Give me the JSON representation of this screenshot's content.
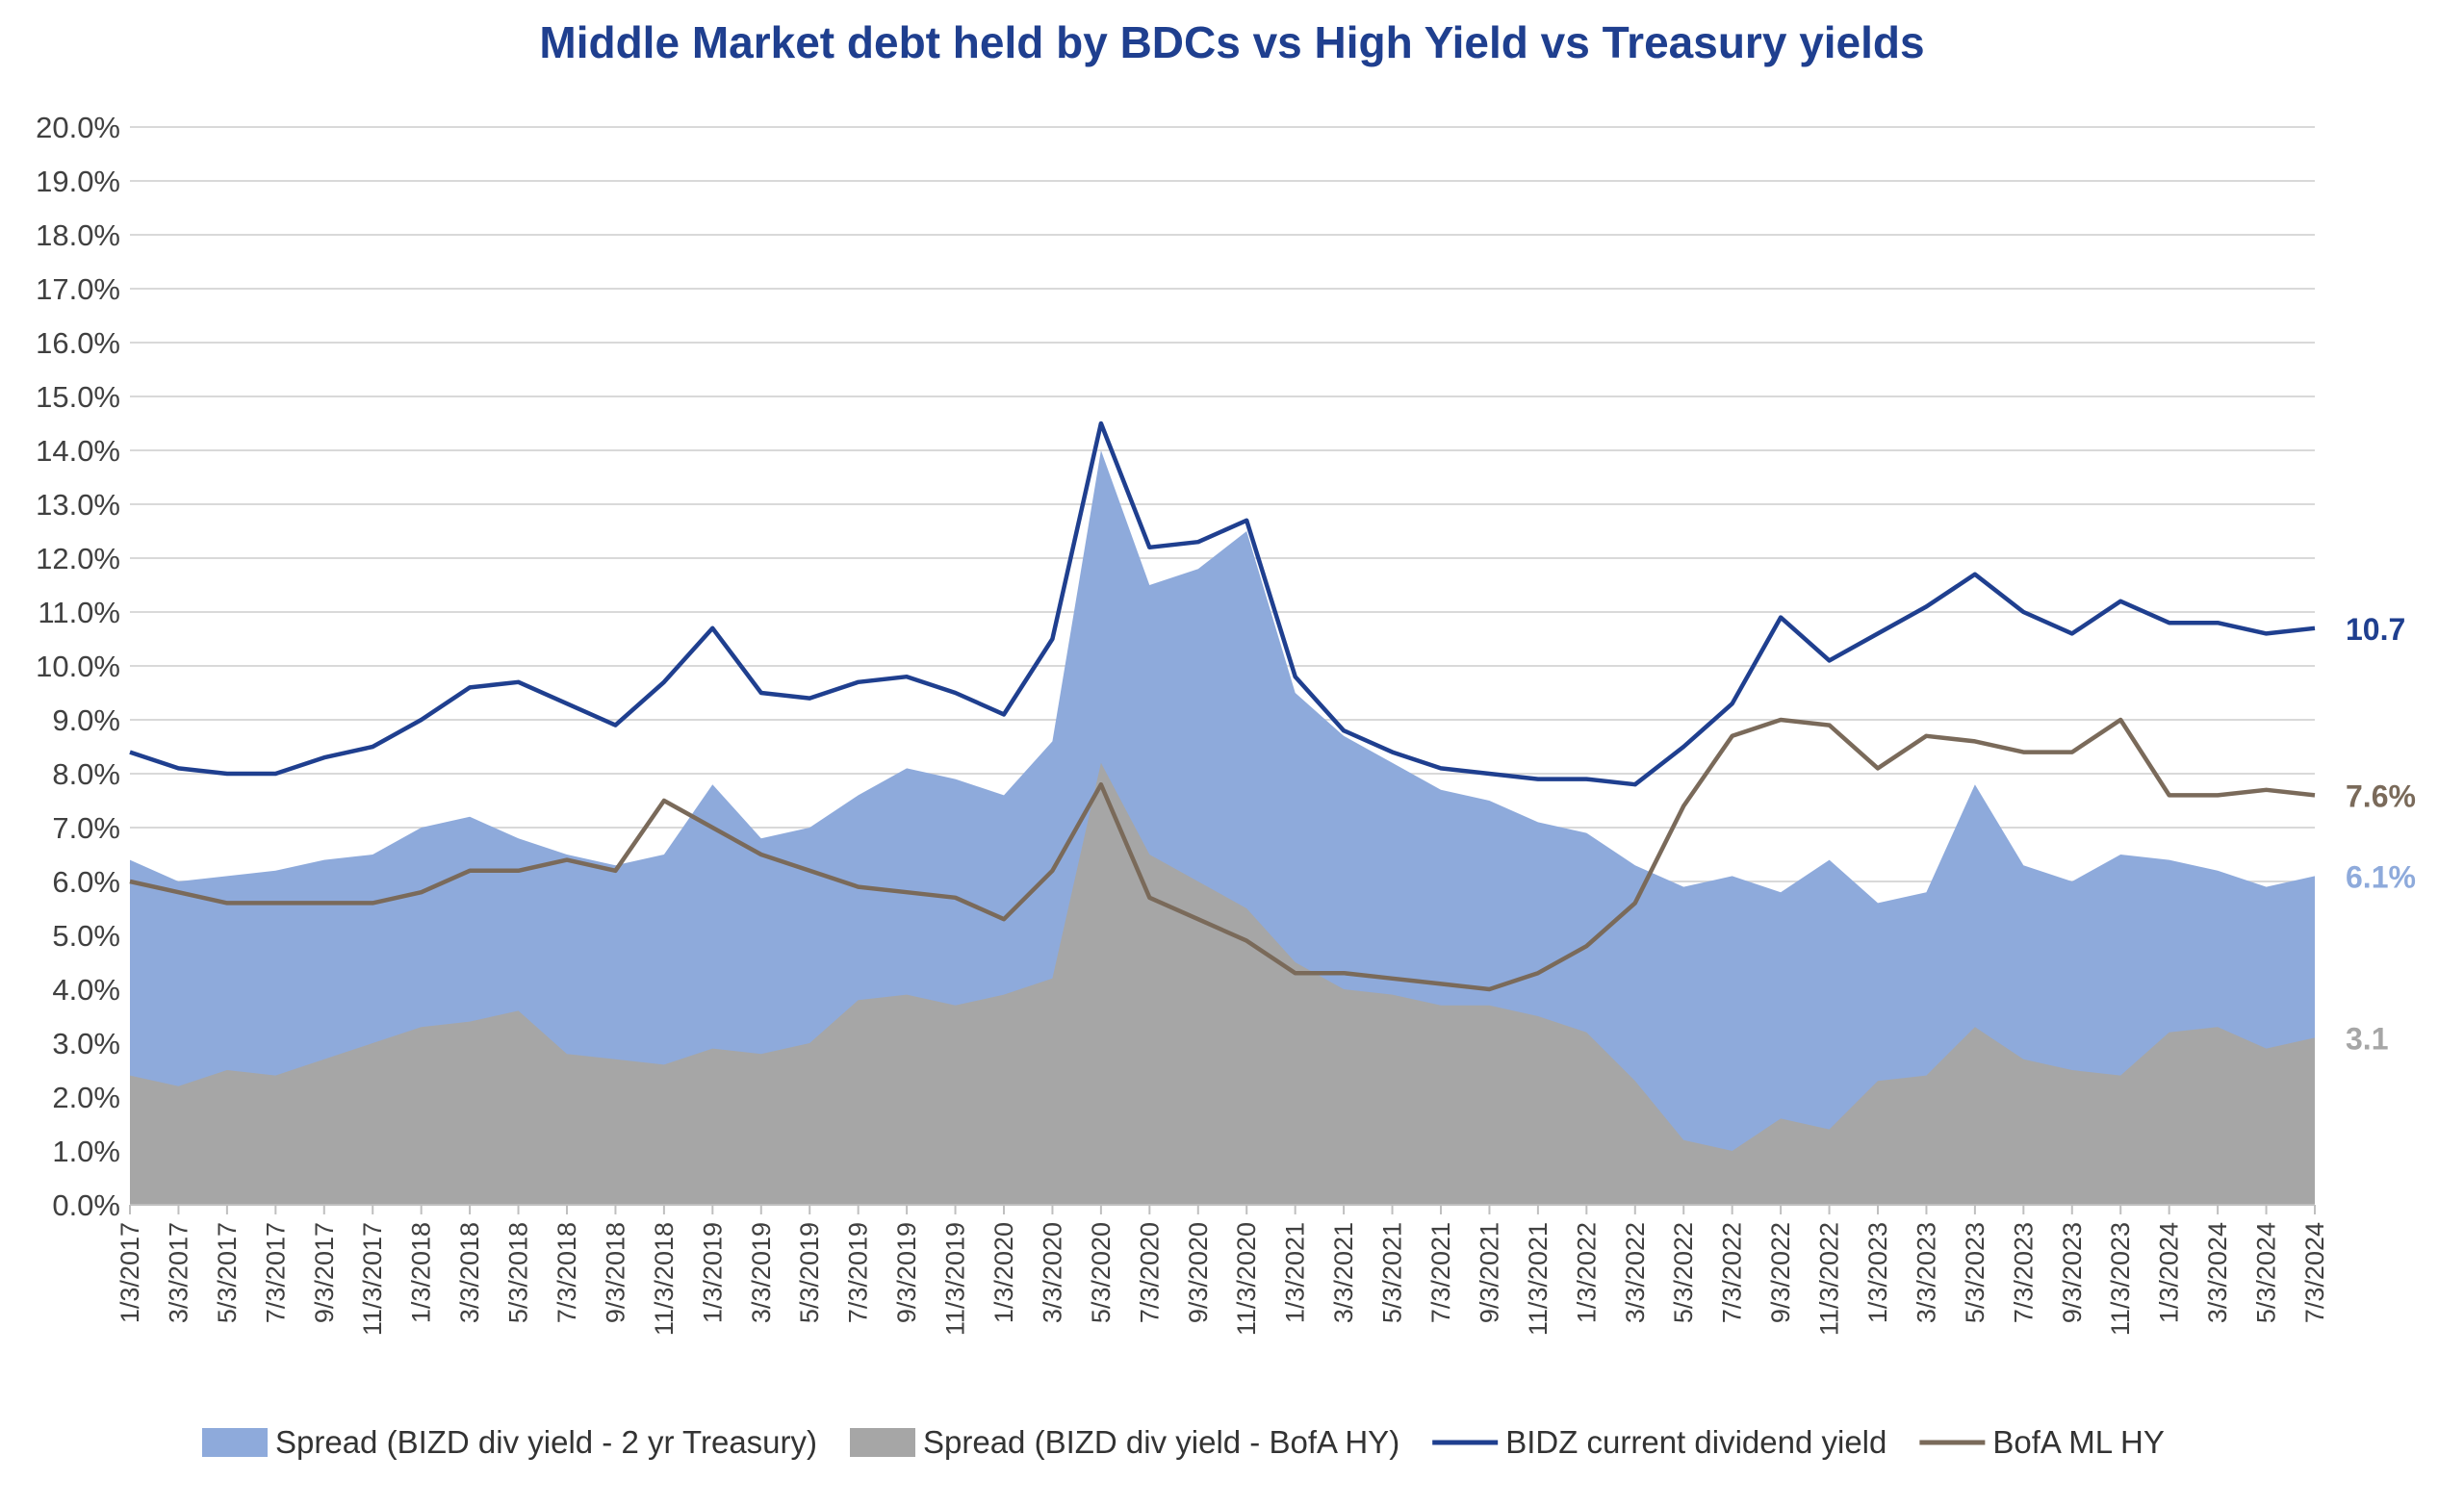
{
  "chart_data": {
    "type": "area",
    "title": "Middle Market debt held by BDCs vs High Yield vs Treasury yields",
    "xlabel": "",
    "ylabel": "",
    "ylim": [
      0,
      20
    ],
    "y_ticks": [
      "0.0%",
      "1.0%",
      "2.0%",
      "3.0%",
      "4.0%",
      "5.0%",
      "6.0%",
      "7.0%",
      "8.0%",
      "9.0%",
      "10.0%",
      "11.0%",
      "12.0%",
      "13.0%",
      "14.0%",
      "15.0%",
      "16.0%",
      "17.0%",
      "18.0%",
      "19.0%",
      "20.0%"
    ],
    "x_ticks": [
      "1/3/2017",
      "3/3/2017",
      "5/3/2017",
      "7/3/2017",
      "9/3/2017",
      "11/3/2017",
      "1/3/2018",
      "3/3/2018",
      "5/3/2018",
      "7/3/2018",
      "9/3/2018",
      "11/3/2018",
      "1/3/2019",
      "3/3/2019",
      "5/3/2019",
      "7/3/2019",
      "9/3/2019",
      "11/3/2019",
      "1/3/2020",
      "3/3/2020",
      "5/3/2020",
      "7/3/2020",
      "9/3/2020",
      "11/3/2020",
      "1/3/2021",
      "3/3/2021",
      "5/3/2021",
      "7/3/2021",
      "9/3/2021",
      "11/3/2021",
      "1/3/2022",
      "3/3/2022",
      "5/3/2022",
      "7/3/2022",
      "9/3/2022",
      "11/3/2022",
      "1/3/2023",
      "3/3/2023",
      "5/3/2023",
      "7/3/2023",
      "9/3/2023",
      "11/3/2023",
      "1/3/2024",
      "3/3/2024",
      "5/3/2024",
      "7/3/2024"
    ],
    "x": [
      "1/3/2017",
      "3/3/2017",
      "5/3/2017",
      "7/3/2017",
      "9/3/2017",
      "11/3/2017",
      "1/3/2018",
      "3/3/2018",
      "5/3/2018",
      "7/3/2018",
      "9/3/2018",
      "11/3/2018",
      "1/3/2019",
      "3/3/2019",
      "5/3/2019",
      "7/3/2019",
      "9/3/2019",
      "11/3/2019",
      "1/3/2020",
      "3/3/2020",
      "5/3/2020",
      "7/3/2020",
      "9/3/2020",
      "11/3/2020",
      "1/3/2021",
      "3/3/2021",
      "5/3/2021",
      "7/3/2021",
      "9/3/2021",
      "11/3/2021",
      "1/3/2022",
      "3/3/2022",
      "5/3/2022",
      "7/3/2022",
      "9/3/2022",
      "11/3/2022",
      "1/3/2023",
      "3/3/2023",
      "5/3/2023",
      "7/3/2023",
      "9/3/2023",
      "11/3/2023",
      "1/3/2024",
      "3/3/2024",
      "5/3/2024",
      "7/3/2024"
    ],
    "series": [
      {
        "name": "Spread (BIZD div yield - 2 yr Treasury)",
        "kind": "area",
        "color": "#8eaadb",
        "values": [
          6.4,
          6.0,
          6.1,
          6.2,
          6.4,
          6.5,
          7.0,
          7.2,
          6.8,
          6.5,
          6.3,
          6.5,
          7.8,
          6.8,
          7.0,
          7.6,
          8.1,
          7.9,
          7.6,
          8.6,
          14.0,
          11.5,
          11.8,
          12.5,
          9.5,
          8.7,
          8.2,
          7.7,
          7.5,
          7.1,
          6.9,
          6.3,
          5.9,
          6.1,
          5.8,
          6.4,
          5.6,
          5.8,
          7.8,
          6.3,
          6.0,
          6.5,
          6.4,
          6.2,
          5.9,
          6.1
        ]
      },
      {
        "name": "Spread (BIZD div yield - BofA HY)",
        "kind": "area",
        "color": "#a6a6a6",
        "values": [
          2.4,
          2.2,
          2.5,
          2.4,
          2.7,
          3.0,
          3.3,
          3.4,
          3.6,
          2.8,
          2.7,
          2.6,
          2.9,
          2.8,
          3.0,
          3.8,
          3.9,
          3.7,
          3.9,
          4.2,
          8.2,
          6.5,
          6.0,
          5.5,
          4.5,
          4.0,
          3.9,
          3.7,
          3.7,
          3.5,
          3.2,
          2.3,
          1.2,
          1.0,
          1.6,
          1.4,
          2.3,
          2.4,
          3.3,
          2.7,
          2.5,
          2.4,
          3.2,
          3.3,
          2.9,
          3.1
        ]
      },
      {
        "name": "BIDZ current dividend yield",
        "kind": "line",
        "color": "#1f3f8f",
        "values": [
          8.4,
          8.1,
          8.0,
          8.0,
          8.3,
          8.5,
          9.0,
          9.6,
          9.7,
          9.3,
          8.9,
          9.7,
          10.7,
          9.5,
          9.4,
          9.7,
          9.8,
          9.5,
          9.1,
          10.5,
          14.5,
          12.2,
          12.3,
          12.7,
          9.8,
          8.8,
          8.4,
          8.1,
          8.0,
          7.9,
          7.9,
          7.8,
          8.5,
          9.3,
          10.9,
          10.1,
          10.6,
          11.1,
          11.7,
          11.0,
          10.6,
          11.2,
          10.8,
          10.8,
          10.6,
          10.7
        ]
      },
      {
        "name": "BofA ML HY",
        "kind": "line",
        "color": "#7a6a5a",
        "values": [
          6.0,
          5.8,
          5.6,
          5.6,
          5.6,
          5.6,
          5.8,
          6.2,
          6.2,
          6.4,
          6.2,
          7.5,
          7.0,
          6.5,
          6.2,
          5.9,
          5.8,
          5.7,
          5.3,
          6.2,
          7.8,
          5.7,
          5.3,
          4.9,
          4.3,
          4.3,
          4.2,
          4.1,
          4.0,
          4.3,
          4.8,
          5.6,
          7.4,
          8.7,
          9.0,
          8.9,
          8.1,
          8.7,
          8.6,
          8.4,
          8.4,
          9.0,
          7.6,
          7.6,
          7.7,
          7.6
        ]
      }
    ],
    "end_labels": [
      {
        "text": "10.7",
        "color": "#1f3f8f"
      },
      {
        "text": "7.6%",
        "color": "#7a6a5a"
      },
      {
        "text": "6.1%",
        "color": "#8eaadb"
      },
      {
        "text": "3.1",
        "color": "#a6a6a6"
      }
    ],
    "legend_position": "bottom",
    "grid": true
  }
}
